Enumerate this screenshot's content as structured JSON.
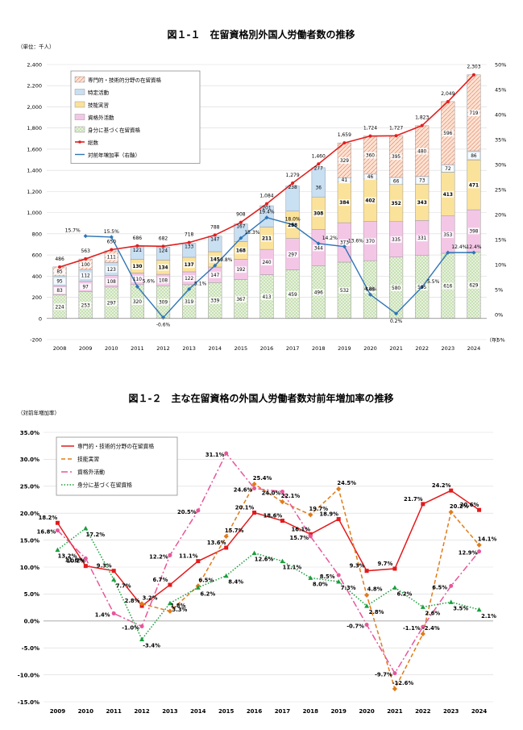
{
  "chart_data": [
    {
      "type": "bar",
      "stacked": true,
      "title": "図１-１　在留資格別外国人労働者数の推移",
      "unit_label": "（単位：千人）",
      "x_unit": "（年）",
      "right_axis_label": "",
      "categories": [
        "2008",
        "2009",
        "2010",
        "2011",
        "2012",
        "2013",
        "2014",
        "2015",
        "2016",
        "2017",
        "2018",
        "2019",
        "2020",
        "2021",
        "2022",
        "2023",
        "2024"
      ],
      "ylim": [
        -200,
        2400
      ],
      "y_ticks": [
        -200,
        0,
        200,
        400,
        600,
        800,
        1000,
        1200,
        1400,
        1600,
        1800,
        2000,
        2200,
        2400
      ],
      "y_tick_labels": [
        "-200",
        "0",
        "200",
        "400",
        "600",
        "800",
        "1,000",
        "1,200",
        "1,400",
        "1,600",
        "1,800",
        "2,000",
        "2,200",
        "2,400"
      ],
      "y2lim": [
        -5,
        50
      ],
      "y2_ticks": [
        -5,
        0,
        5,
        10,
        15,
        20,
        25,
        30,
        35,
        40,
        45,
        50
      ],
      "y2_tick_labels": [
        "-5%",
        "0%",
        "5%",
        "10%",
        "15%",
        "20%",
        "25%",
        "30%",
        "35%",
        "40%",
        "45%",
        "50%"
      ],
      "series": [
        {
          "name": "身分に基づく在留資格",
          "color": "#c5e0b3",
          "pattern": "dots",
          "values": [
            224,
            253,
            297,
            320,
            309,
            319,
            339,
            367,
            413,
            459,
            496,
            532,
            546,
            580,
            595,
            616,
            629
          ],
          "labels": [
            "224",
            "253",
            "297",
            "320",
            "309",
            "319",
            "339",
            "367",
            "413",
            "459",
            "496",
            "532",
            "546",
            "580",
            "595",
            "616",
            "629"
          ]
        },
        {
          "name": "資格外活動",
          "color": "#f4c6e6",
          "pattern": "none",
          "values": [
            83,
            97,
            108,
            110,
            108,
            122,
            147,
            192,
            240,
            297,
            344,
            373,
            370,
            335,
            331,
            353,
            398
          ],
          "labels": [
            "83",
            "97",
            "108",
            "110",
            "108",
            "122",
            "147",
            "192",
            "240",
            "297",
            "344",
            "373",
            "370",
            "335",
            "331",
            "353",
            "398"
          ]
        },
        {
          "name": "技能実習",
          "color": "#fbe29a",
          "pattern": "none",
          "values": [
            0,
            0,
            0,
            130,
            134,
            137,
            145,
            168,
            211,
            258,
            308,
            384,
            402,
            352,
            343,
            413,
            471
          ],
          "labels": [
            "",
            "",
            "",
            "130",
            "134",
            "137",
            "145",
            "168",
            "211",
            "258",
            "308",
            "384",
            "402",
            "352",
            "343",
            "413",
            "471"
          ]
        },
        {
          "name": "特定活動",
          "color": "#c9dff2",
          "pattern": "none",
          "values": [
            95,
            112,
            123,
            121,
            124,
            133,
            147,
            167,
            201,
            238,
            277,
            41,
            46,
            66,
            73,
            72,
            86
          ],
          "labels": [
            "95",
            "112",
            "123",
            "",
            "",
            "",
            "",
            "",
            "",
            "",
            "",
            "41",
            "46",
            "66",
            "73",
            "72",
            "86"
          ]
        },
        {
          "name": "専門的・技術的分野の在留資格",
          "color": "#f8cbad",
          "pattern": "hatch",
          "values": [
            85,
            100,
            111,
            0,
            0,
            0,
            0,
            0,
            0,
            0,
            0,
            329,
            360,
            395,
            480,
            596,
            719
          ],
          "labels": [
            "85",
            "100",
            "111",
            "",
            "",
            "",
            "",
            "",
            "",
            "",
            "",
            "329",
            "360",
            "395",
            "480",
            "596",
            "719"
          ]
        }
      ],
      "extra_labels": [
        {
          "category": "2011",
          "text": "121"
        },
        {
          "category": "2012",
          "text": "124"
        },
        {
          "category": "2013",
          "text": "133"
        },
        {
          "category": "2014",
          "text": "147"
        },
        {
          "category": "2015",
          "text": "167"
        },
        {
          "category": "2016",
          "text": "201"
        },
        {
          "category": "2017",
          "text": "238"
        },
        {
          "category": "2018",
          "text": "277"
        },
        {
          "category": "2018",
          "text": "36"
        }
      ],
      "total": {
        "name": "総数",
        "color": "#e02020",
        "values": [
          486,
          563,
          650,
          686,
          682,
          718,
          788,
          908,
          1084,
          1279,
          1460,
          1659,
          1724,
          1727,
          1823,
          2049,
          2303
        ],
        "labels": [
          "486",
          "563",
          "650",
          "686",
          "682",
          "718",
          "788",
          "908",
          "1,084",
          "1,279",
          "1,460",
          "1,659",
          "1,724",
          "1,727",
          "1,823",
          "2,049",
          "2,303"
        ]
      },
      "growth": {
        "name": "対前年増加率（右軸）",
        "color": "#2e75b6",
        "values": [
          null,
          15.7,
          15.5,
          5.6,
          -0.6,
          5.1,
          9.8,
          15.3,
          19.4,
          18.0,
          14.2,
          13.6,
          4.0,
          0.2,
          5.5,
          12.4,
          12.4
        ],
        "labels": [
          "",
          "15.7%",
          "15.5%",
          "5.6%",
          "-0.6%",
          "5.1%",
          "9.8%",
          "15.3%",
          "19.4%",
          "18.0%",
          "14.2%",
          "13.6%",
          "4.0%",
          "0.2%",
          "5.5%",
          "12.4%",
          "12.4%"
        ]
      }
    },
    {
      "type": "line",
      "title": "図１-２　主な在留資格の外国人労働者数対前年増加率の推移",
      "unit_label": "（対前年増加率）",
      "categories": [
        "2009",
        "2010",
        "2011",
        "2012",
        "2013",
        "2014",
        "2015",
        "2016",
        "2017",
        "2018",
        "2019",
        "2020",
        "2021",
        "2022",
        "2023",
        "2024"
      ],
      "ylim": [
        -15,
        35
      ],
      "y_ticks": [
        -15,
        -10,
        -5,
        0,
        5,
        10,
        15,
        20,
        25,
        30,
        35
      ],
      "y_tick_labels": [
        "-15.0%",
        "-10.0%",
        "-5.0%",
        "0.0%",
        "5.0%",
        "10.0%",
        "15.0%",
        "20.0%",
        "25.0%",
        "30.0%",
        "35.0%"
      ],
      "series": [
        {
          "name": "専門的・技術的分野の在留資格",
          "color": "#e31a1c",
          "style": "solid",
          "marker": "square",
          "values": [
            18.2,
            10.2,
            9.3,
            2.8,
            6.7,
            11.1,
            13.6,
            20.1,
            18.6,
            16.1,
            18.9,
            9.3,
            9.7,
            21.7,
            24.2,
            20.6
          ],
          "labels": [
            "18.2%",
            "10.2%",
            "9.3%",
            "2.8%",
            "6.7%",
            "11.1%",
            "13.6%",
            "20.1%",
            "18.6%",
            "16.1%",
            "18.9%",
            "9.3%",
            "9.7%",
            "21.7%",
            "24.2%",
            "20.6%"
          ]
        },
        {
          "name": "技能実習",
          "color": "#e07b1a",
          "style": "dash",
          "marker": "diamond",
          "values": [
            null,
            null,
            null,
            3.2,
            1.8,
            6.5,
            15.7,
            25.4,
            22.1,
            19.7,
            24.5,
            4.8,
            -12.6,
            -2.4,
            20.2,
            14.1
          ],
          "labels": [
            "",
            "",
            "",
            "3.2%",
            "1.8%",
            "6.5%",
            "15.7%",
            "25.4%",
            "22.1%",
            "19.7%",
            "24.5%",
            "4.8%",
            "-12.6%",
            "-2.4%",
            "20.2%",
            "14.1%"
          ]
        },
        {
          "name": "資格外活動",
          "color": "#e8559a",
          "style": "dashdot",
          "marker": "circle",
          "values": [
            16.8,
            11.6,
            1.4,
            -1.0,
            12.2,
            20.5,
            31.1,
            24.6,
            24.0,
            15.7,
            8.5,
            -0.7,
            -9.7,
            -1.1,
            6.5,
            12.9
          ],
          "labels": [
            "16.8%",
            "11.6%",
            "1.4%",
            "-1.0%",
            "12.2%",
            "20.5%",
            "31.1%",
            "24.6%",
            "24.0%",
            "15.7%",
            "8.5%",
            "-0.7%",
            "-9.7%",
            "-1.1%",
            "6.5%",
            "12.9%"
          ]
        },
        {
          "name": "身分に基づく在留資格",
          "color": "#1a9e3c",
          "style": "dot",
          "marker": "triangle",
          "values": [
            13.2,
            17.2,
            7.7,
            -3.4,
            3.3,
            6.2,
            8.4,
            12.6,
            11.1,
            8.0,
            7.3,
            2.8,
            6.2,
            2.6,
            3.5,
            2.1
          ],
          "labels": [
            "13.2%",
            "17.2%",
            "7.7%",
            "-3.4%",
            "3.3%",
            "6.2%",
            "8.4%",
            "12.6%",
            "11.1%",
            "8.0%",
            "7.3%",
            "2.8%",
            "6.2%",
            "2.6%",
            "3.5%",
            "2.1%"
          ]
        }
      ]
    }
  ]
}
